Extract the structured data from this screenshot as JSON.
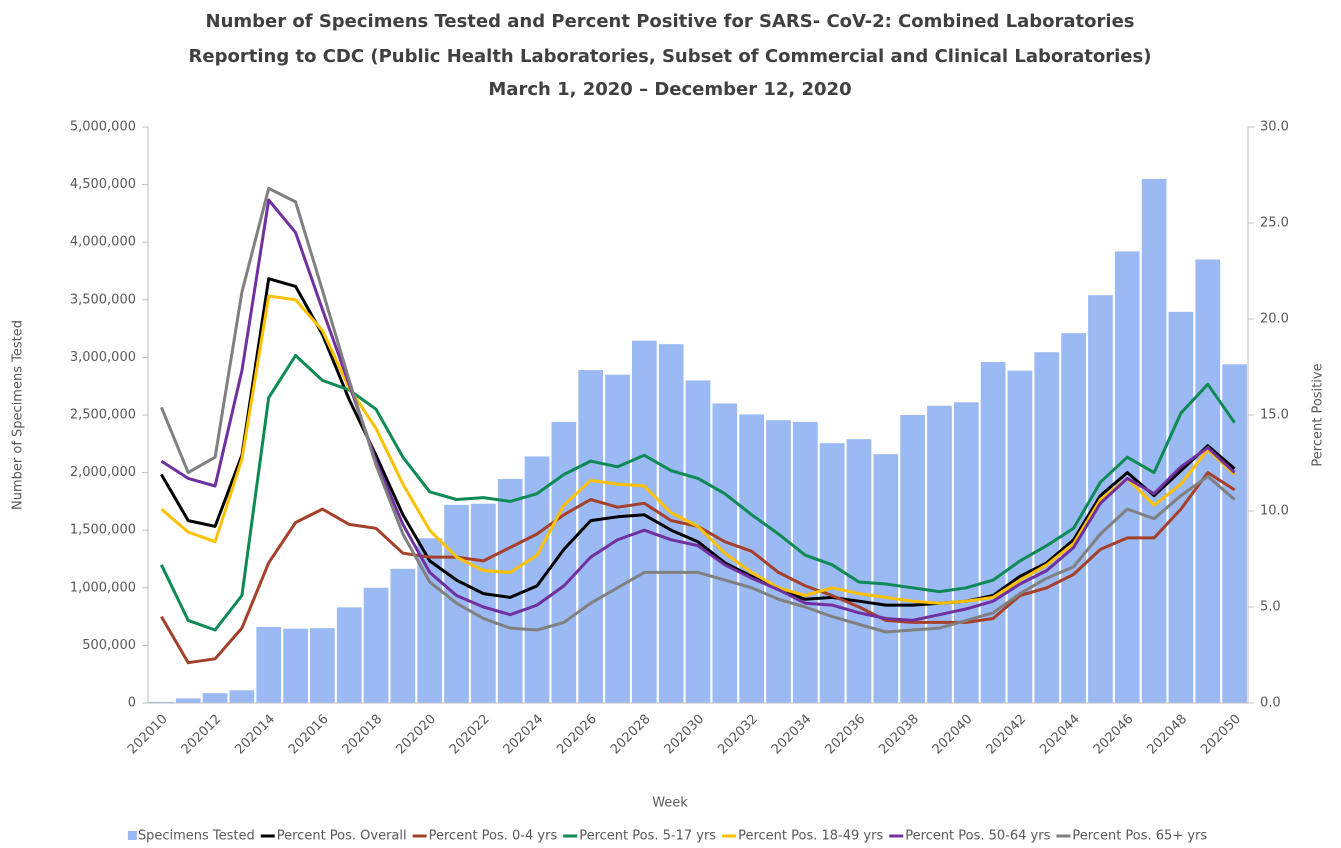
{
  "chart_data": {
    "type": "combo",
    "title": [
      "Number of Specimens Tested and Percent Positive for SARS- CoV-2: Combined Laboratories",
      "Reporting to CDC (Public Health Laboratories, Subset of Commercial and Clinical Laboratories)",
      "March 1, 2020 – December 12, 2020"
    ],
    "x_label": "Week",
    "y_label": "Number of Specimens Tested",
    "y2_label": "Percent Positive",
    "categories": [
      "202010",
      null,
      "202012",
      null,
      "202014",
      null,
      "202016",
      null,
      "202018",
      null,
      "202020",
      null,
      "202022",
      null,
      "202024",
      null,
      "202026",
      null,
      "202028",
      null,
      "202030",
      null,
      "202032",
      null,
      "202034",
      null,
      "202036",
      null,
      "202038",
      null,
      "202040",
      null,
      "202042",
      null,
      "202044",
      null,
      "202046",
      null,
      "202048",
      null,
      "202050"
    ],
    "ylim": [
      0,
      5000000
    ],
    "yticks": [
      0,
      {
        "value": 500000,
        "label": "500,000"
      },
      {
        "value": 1000000,
        "label": "1,000,000"
      },
      {
        "value": 1500000,
        "label": "1,500,000"
      },
      {
        "value": 2000000,
        "label": "2,000,000"
      },
      {
        "value": 2500000,
        "label": "2,500,000"
      },
      {
        "value": 3000000,
        "label": "3,000,000"
      },
      {
        "value": 3500000,
        "label": "3,500,000"
      },
      {
        "value": 4000000,
        "label": "4,000,000"
      },
      {
        "value": 4500000,
        "label": "4,500,000"
      },
      {
        "value": 5000000,
        "label": "5,000,000"
      }
    ],
    "y2lim": [
      0,
      30
    ],
    "y2ticks": [
      {
        "value": 0,
        "label": "0.0"
      },
      {
        "value": 5,
        "label": "5.0"
      },
      {
        "value": 10,
        "label": "10.0"
      },
      {
        "value": 15,
        "label": "15.0"
      },
      {
        "value": 20,
        "label": "20.0"
      },
      {
        "value": 25,
        "label": "25.0"
      },
      {
        "value": 30,
        "label": "30.0"
      }
    ],
    "legend": "bottom",
    "series": [
      {
        "name": "Specimens Tested",
        "type": "bar",
        "axis": "y",
        "color": "#9bb9f2",
        "values": [
          10000,
          40000,
          85000,
          110000,
          660000,
          645000,
          650000,
          830000,
          1000000,
          1165000,
          1430000,
          1720000,
          1730000,
          1945000,
          2140000,
          2440000,
          2890000,
          2850000,
          3145000,
          3115000,
          2800000,
          2600000,
          2505000,
          2455000,
          2440000,
          2255000,
          2290000,
          2160000,
          2500000,
          2580000,
          2610000,
          2960000,
          2885000,
          3045000,
          3210000,
          3540000,
          3920000,
          4550000,
          3395000,
          3850000,
          2940000
        ]
      },
      {
        "name": "Percent Pos. Overall",
        "type": "line",
        "axis": "y2",
        "color": "#000000",
        "values": [
          11.9,
          9.5,
          9.2,
          12.9,
          22.1,
          21.7,
          19.2,
          15.8,
          12.9,
          9.8,
          7.4,
          6.4,
          5.7,
          5.5,
          6.1,
          8.0,
          9.5,
          9.7,
          9.8,
          9.0,
          8.4,
          7.3,
          6.6,
          5.9,
          5.4,
          5.5,
          5.3,
          5.1,
          5.1,
          5.2,
          5.3,
          5.6,
          6.6,
          7.3,
          8.5,
          10.8,
          12.0,
          10.8,
          12.1,
          13.4,
          12.2
        ]
      },
      {
        "name": "Percent Pos. 0-4 yrs",
        "type": "line",
        "axis": "y2",
        "color": "#a5402a",
        "values": [
          4.5,
          2.1,
          2.3,
          3.9,
          7.3,
          9.4,
          10.1,
          9.3,
          9.1,
          7.8,
          7.6,
          7.6,
          7.4,
          8.1,
          8.8,
          9.8,
          10.6,
          10.2,
          10.4,
          9.5,
          9.2,
          8.4,
          7.9,
          6.8,
          6.1,
          5.6,
          5.0,
          4.3,
          4.2,
          4.2,
          4.2,
          4.4,
          5.6,
          6.0,
          6.7,
          8.0,
          8.6,
          8.6,
          10.1,
          12.0,
          11.1
        ]
      },
      {
        "name": "Percent Pos. 5-17 yrs",
        "type": "line",
        "axis": "y2",
        "color": "#0e8a55",
        "values": [
          7.2,
          4.3,
          3.8,
          5.6,
          15.9,
          18.1,
          16.8,
          16.3,
          15.3,
          12.8,
          11.0,
          10.6,
          10.7,
          10.5,
          10.9,
          11.9,
          12.6,
          12.3,
          12.9,
          12.1,
          11.7,
          10.9,
          9.8,
          8.8,
          7.7,
          7.2,
          6.3,
          6.2,
          6.0,
          5.8,
          6.0,
          6.4,
          7.4,
          8.2,
          9.1,
          11.5,
          12.8,
          12.0,
          15.1,
          16.6,
          14.6
        ]
      },
      {
        "name": "Percent Pos. 18-49 yrs",
        "type": "line",
        "axis": "y2",
        "color": "#ffc000",
        "values": [
          10.1,
          8.9,
          8.4,
          12.7,
          21.2,
          21.0,
          19.4,
          16.4,
          14.3,
          11.4,
          9.0,
          7.6,
          6.9,
          6.8,
          7.7,
          10.3,
          11.6,
          11.4,
          11.3,
          9.9,
          9.2,
          7.8,
          6.8,
          6.0,
          5.6,
          6.0,
          5.7,
          5.5,
          5.3,
          5.2,
          5.3,
          5.5,
          6.4,
          7.2,
          8.3,
          10.6,
          11.7,
          10.3,
          11.4,
          13.2,
          11.9
        ]
      },
      {
        "name": "Percent Pos. 50-64 yrs",
        "type": "line",
        "axis": "y2",
        "color": "#7030a0",
        "values": [
          12.6,
          11.7,
          11.3,
          17.3,
          26.2,
          24.5,
          20.5,
          16.6,
          12.6,
          9.3,
          6.8,
          5.6,
          5.0,
          4.6,
          5.1,
          6.1,
          7.6,
          8.5,
          9.0,
          8.5,
          8.2,
          7.2,
          6.5,
          5.9,
          5.2,
          5.1,
          4.7,
          4.4,
          4.3,
          4.6,
          4.9,
          5.3,
          6.2,
          6.9,
          8.1,
          10.4,
          11.7,
          10.9,
          12.3,
          13.3,
          12.0
        ]
      },
      {
        "name": "Percent Pos. 65+ yrs",
        "type": "line",
        "axis": "y2",
        "color": "#808080",
        "values": [
          15.4,
          12.0,
          12.8,
          21.4,
          26.8,
          26.1,
          21.5,
          16.8,
          12.4,
          8.8,
          6.3,
          5.2,
          4.4,
          3.9,
          3.8,
          4.2,
          5.2,
          6.0,
          6.8,
          6.8,
          6.8,
          6.4,
          6.0,
          5.4,
          5.0,
          4.5,
          4.1,
          3.7,
          3.8,
          3.9,
          4.3,
          4.7,
          5.7,
          6.5,
          7.1,
          8.8,
          10.1,
          9.6,
          10.8,
          11.8,
          10.6
        ]
      }
    ]
  }
}
